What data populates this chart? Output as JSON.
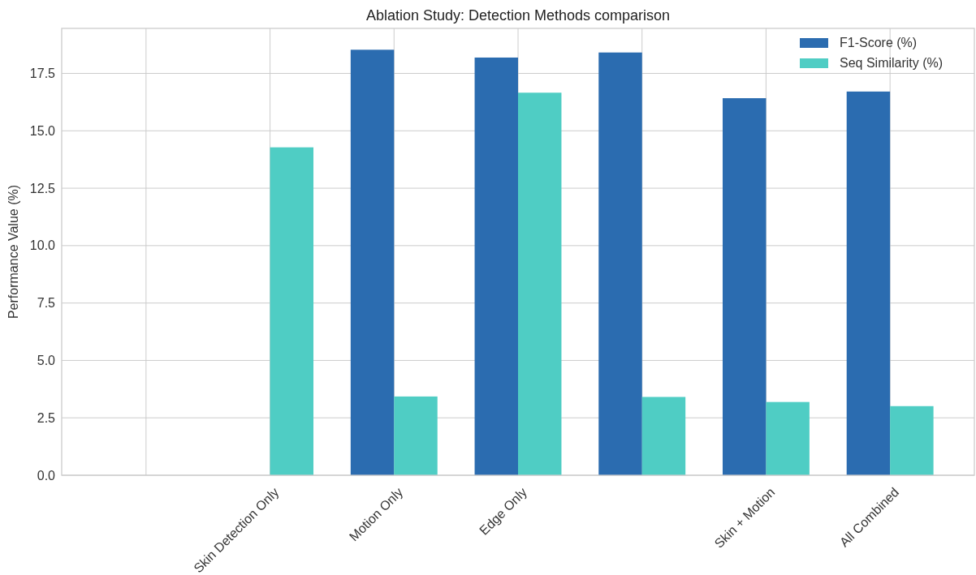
{
  "chart_data": {
    "type": "bar",
    "title": "Ablation Study: Detection Methods comparison",
    "ylabel": "Performance Value (%)",
    "categories": [
      null,
      "Skin Detection Only",
      "Motion Only",
      "Edge Only",
      null,
      "Skin + Motion",
      "All Combined"
    ],
    "series": [
      {
        "name": "F1-Score (%)",
        "color": "#2b6cb0",
        "values": [
          0,
          0,
          18.53,
          18.19,
          18.41,
          16.42,
          16.71
        ]
      },
      {
        "name": "Seq Similarity (%)",
        "color": "#4fcdc4",
        "values": [
          0,
          14.28,
          3.43,
          16.66,
          3.41,
          3.19,
          3.01
        ]
      }
    ],
    "ylim": [
      0,
      19.46
    ],
    "yticks": [
      {
        "value": 0,
        "label": "0.0"
      },
      {
        "value": 2.5,
        "label": "2.5"
      },
      {
        "value": 5,
        "label": "5.0"
      },
      {
        "value": 7.5,
        "label": "7.5"
      },
      {
        "value": 10,
        "label": "10.0"
      },
      {
        "value": 12.5,
        "label": "12.5"
      },
      {
        "value": 15,
        "label": "15.0"
      },
      {
        "value": 17.5,
        "label": "17.5"
      }
    ],
    "grid": true,
    "legend": "top right"
  }
}
